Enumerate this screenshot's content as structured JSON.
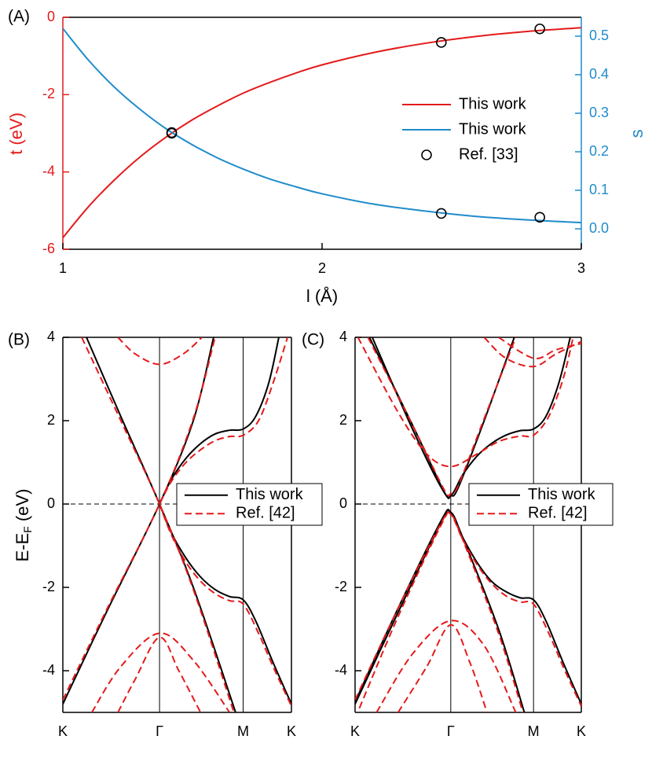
{
  "chart_data": [
    {
      "type": "line",
      "panel_label": "(A)",
      "xlabel": "l (Å)",
      "ylabel": "t (eV)",
      "y2label": "s",
      "y_color": "#e41a1c",
      "y2_color": "#1f8ccb",
      "xlim": [
        1,
        3
      ],
      "xticks": [
        1,
        2,
        3
      ],
      "ylim": [
        -6,
        0
      ],
      "yticks": [
        0,
        -2,
        -4,
        -6
      ],
      "y2lim": [
        -0.053,
        0.549
      ],
      "y2ticks": [
        {
          "value": 0,
          "label": "0.0"
        },
        0.1,
        0.2,
        0.3,
        0.4,
        0.5
      ],
      "legend": "right",
      "x": [
        1,
        1.1,
        1.2,
        1.3,
        1.4,
        1.5,
        1.6,
        1.7,
        1.8,
        1.9,
        2,
        2.2,
        2.4,
        2.6,
        2.8,
        3
      ],
      "series": [
        {
          "name": "This work",
          "color": "#e41a1c",
          "axis": "y",
          "values": [
            -5.7,
            -4.89,
            -4.2,
            -3.6,
            -3.09,
            -2.65,
            -2.28,
            -1.95,
            -1.68,
            -1.44,
            -1.23,
            -0.91,
            -0.67,
            -0.49,
            -0.36,
            -0.27
          ]
        },
        {
          "name": "This work",
          "color": "#1f8ccb",
          "axis": "y2",
          "values": [
            0.52,
            0.437,
            0.367,
            0.309,
            0.259,
            0.218,
            0.183,
            0.154,
            0.129,
            0.109,
            0.091,
            0.064,
            0.046,
            0.032,
            0.023,
            0.016
          ]
        },
        {
          "name": "Ref. [33]",
          "color": "#000000",
          "marker": "circle",
          "x": [
            1.42,
            2.46,
            2.84
          ],
          "values": [
            -3.0,
            -0.65,
            -0.3
          ],
          "y2_values": [
            0.25,
            0.04,
            0.03
          ]
        }
      ]
    },
    {
      "type": "line",
      "panel_label": "(B)",
      "ylabel": {
        "main": "E-E",
        "sub": "F",
        "unit": "(eV)"
      },
      "xlim": [
        0,
        1.577
      ],
      "xticks": [
        {
          "value": 0,
          "label": "K"
        },
        {
          "value": 0.667,
          "label": "Γ"
        },
        {
          "value": 1.244,
          "label": "M"
        },
        {
          "value": 1.577,
          "label": "K"
        }
      ],
      "ylim": [
        -5,
        4
      ],
      "yticks": [
        -4,
        -2,
        0,
        2,
        4
      ],
      "hline": 0,
      "legend": "center right",
      "series": [
        {
          "name": "This work",
          "color": "#000000",
          "dash": false,
          "bands": [
            {
              "x": [
                0.163,
                0.4,
                0.667,
                0.9,
                1.192
              ],
              "values": [
                4,
                2.1,
                0,
                -2.0,
                -5
              ]
            },
            {
              "x": [
                0,
                0.3,
                0.667,
                0.9,
                1.04
              ],
              "values": [
                -4.8,
                -2.6,
                0,
                2.0,
                4
              ]
            },
            {
              "x": [
                0.667,
                0.75,
                0.85,
                0.95,
                1.05,
                1.15,
                1.244,
                1.33,
                1.42,
                1.49
              ],
              "values": [
                0,
                0.6,
                1.1,
                1.45,
                1.68,
                1.77,
                1.8,
                2.1,
                2.9,
                4
              ]
            },
            {
              "x": [
                0.667,
                0.75,
                0.85,
                0.95,
                1.05,
                1.15,
                1.244,
                1.33,
                1.45,
                1.577
              ],
              "values": [
                0,
                -0.7,
                -1.3,
                -1.75,
                -2.05,
                -2.22,
                -2.3,
                -2.8,
                -3.8,
                -4.8
              ]
            }
          ]
        },
        {
          "name": "Ref. [42]",
          "color": "#e41a1c",
          "dash": true,
          "bands": [
            {
              "x": [
                0.13,
                0.4,
                0.667,
                0.9,
                1.18
              ],
              "values": [
                4,
                2.0,
                0,
                -2.05,
                -5
              ]
            },
            {
              "x": [
                0,
                0.3,
                0.667,
                0.9,
                1.05
              ],
              "values": [
                -4.7,
                -2.55,
                0,
                2.05,
                4
              ]
            },
            {
              "x": [
                0.667,
                0.75,
                0.85,
                0.95,
                1.05,
                1.15,
                1.244,
                1.35,
                1.45,
                1.55
              ],
              "values": [
                0,
                0.55,
                1.0,
                1.3,
                1.52,
                1.62,
                1.65,
                2.0,
                2.9,
                4
              ]
            },
            {
              "x": [
                0.667,
                0.75,
                0.85,
                0.95,
                1.05,
                1.15,
                1.244,
                1.35,
                1.45,
                1.577
              ],
              "values": [
                0,
                -0.75,
                -1.4,
                -1.85,
                -2.15,
                -2.32,
                -2.4,
                -3.1,
                -3.9,
                -4.85
              ]
            },
            {
              "x": [
                0.38,
                0.5,
                0.667,
                0.83,
                0.96
              ],
              "values": [
                4,
                3.6,
                3.35,
                3.6,
                4
              ]
            },
            {
              "x": [
                0.2,
                0.4,
                0.667,
                0.9,
                1.15
              ],
              "values": [
                -5,
                -3.9,
                -3.1,
                -3.75,
                -5
              ]
            },
            {
              "x": [
                0.38,
                0.5,
                0.667,
                0.8,
                0.95
              ],
              "values": [
                -5,
                -4.2,
                -3.2,
                -4.0,
                -5
              ]
            }
          ]
        }
      ]
    },
    {
      "type": "line",
      "panel_label": "(C)",
      "xlim": [
        0,
        1.577
      ],
      "xticks": [
        {
          "value": 0,
          "label": "K"
        },
        {
          "value": 0.667,
          "label": "Γ"
        },
        {
          "value": 1.244,
          "label": "M"
        },
        {
          "value": 1.577,
          "label": "K"
        }
      ],
      "ylim": [
        -5,
        4
      ],
      "yticks": [
        -4,
        -2,
        0,
        2,
        4
      ],
      "hline": 0,
      "legend": "center right",
      "series": [
        {
          "name": "This work",
          "color": "#000000",
          "dash": false,
          "bands": [
            {
              "x": [
                0.1,
                0.4,
                0.62,
                0.667,
                0.72,
                0.9,
                1.11
              ],
              "values": [
                4,
                1.9,
                0.3,
                0.2,
                0.4,
                2.0,
                4
              ]
            },
            {
              "x": [
                0.12,
                0.4,
                0.6,
                0.667,
                0.75,
                0.85,
                0.95,
                1.05,
                1.15,
                1.244,
                1.33,
                1.42,
                1.5
              ],
              "values": [
                4,
                1.8,
                0.4,
                0.2,
                0.7,
                1.15,
                1.45,
                1.65,
                1.76,
                1.8,
                2.1,
                2.9,
                4
              ]
            },
            {
              "x": [
                0,
                0.3,
                0.6,
                0.667,
                0.75,
                1.0,
                1.18
              ],
              "values": [
                -4.8,
                -2.6,
                -0.45,
                -0.2,
                -0.8,
                -3.0,
                -5
              ]
            },
            {
              "x": [
                0,
                0.3,
                0.6,
                0.667,
                0.75,
                0.85,
                0.95,
                1.05,
                1.15,
                1.244,
                1.33,
                1.45,
                1.577
              ],
              "values": [
                -4.75,
                -2.5,
                -0.4,
                -0.2,
                -0.8,
                -1.4,
                -1.85,
                -2.1,
                -2.25,
                -2.3,
                -2.8,
                -3.8,
                -4.8
              ]
            }
          ]
        },
        {
          "name": "Ref. [42]",
          "color": "#e41a1c",
          "dash": true,
          "bands": [
            {
              "x": [
                0.02,
                0.3,
                0.5,
                0.667,
                0.85,
                1.0,
                1.15,
                1.244,
                1.35,
                1.45,
                1.52
              ],
              "values": [
                4,
                2.2,
                1.2,
                0.9,
                1.2,
                1.5,
                1.63,
                1.65,
                2.1,
                3.0,
                4
              ]
            },
            {
              "x": [
                0.09,
                0.4,
                0.62,
                0.667,
                0.72,
                0.9,
                1.12
              ],
              "values": [
                4,
                1.9,
                0.35,
                0.25,
                0.45,
                2.05,
                4
              ]
            },
            {
              "x": [
                0.9,
                1.05,
                1.244,
                1.4,
                1.577
              ],
              "values": [
                4,
                3.5,
                3.3,
                3.6,
                3.9
              ]
            },
            {
              "x": [
                1.0,
                1.244,
                1.4,
                1.577
              ],
              "values": [
                4,
                3.5,
                3.7,
                3.85
              ]
            },
            {
              "x": [
                0,
                0.3,
                0.6,
                0.667,
                0.75,
                0.85,
                0.95,
                1.05,
                1.15,
                1.244,
                1.35,
                1.45,
                1.577
              ],
              "values": [
                -4.7,
                -2.5,
                -0.45,
                -0.25,
                -0.85,
                -1.45,
                -1.9,
                -2.2,
                -2.35,
                -2.4,
                -3.1,
                -3.9,
                -4.85
              ]
            },
            {
              "x": [
                0.03,
                0.3,
                0.6,
                0.667,
                0.75,
                1.0,
                1.17
              ],
              "values": [
                -4.9,
                -2.7,
                -0.5,
                -0.25,
                -0.85,
                -3.1,
                -5
              ]
            },
            {
              "x": [
                0.15,
                0.4,
                0.667,
                0.9,
                1.12
              ],
              "values": [
                -5,
                -3.6,
                -2.8,
                -3.4,
                -5
              ]
            },
            {
              "x": [
                0.3,
                0.5,
                0.667,
                0.8,
                0.92
              ],
              "values": [
                -5,
                -3.9,
                -2.9,
                -3.8,
                -5
              ]
            }
          ]
        }
      ]
    }
  ]
}
